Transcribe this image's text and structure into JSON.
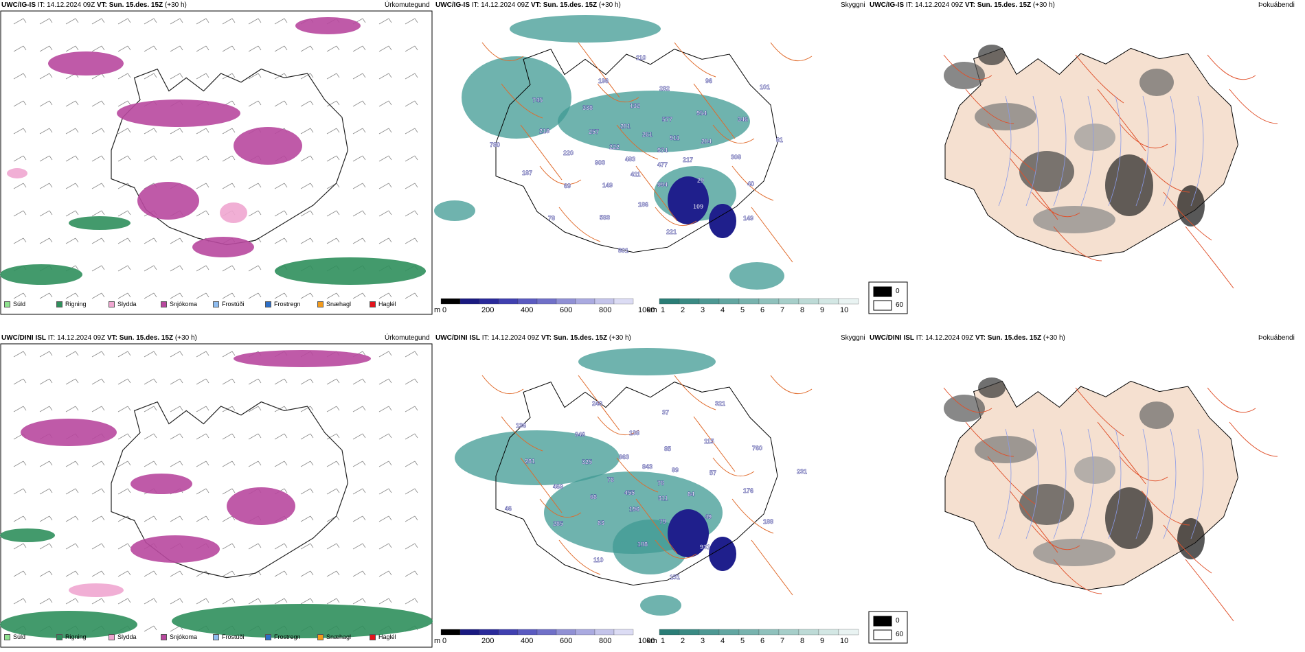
{
  "rows": [
    {
      "model": "UWC/IG-IS",
      "it": "IT: 14.12.2024 09Z",
      "vt": "VT: Sun. 15.des. 15Z",
      "lead": "(+30 h)",
      "cloud_labels": [
        "974",
        "483",
        "261",
        "477",
        "222",
        "911",
        "411",
        "201",
        "217",
        "903",
        "577",
        "994",
        "257",
        "204",
        "149",
        "132",
        "29",
        "220",
        "954",
        "186",
        "338",
        "308",
        "69",
        "282",
        "109",
        "218",
        "346",
        "583",
        "196",
        "40",
        "187",
        "96",
        "221",
        "745",
        "81",
        "78",
        "110",
        "149",
        "780",
        "101",
        "801"
      ]
    },
    {
      "model": "UWC/DINI ISL",
      "it": "IT: 14.12.2024 09Z",
      "vt": "VT: Sun. 15.des. 15Z",
      "lead": "(+30 h)",
      "cloud_labels": [
        "76",
        "455",
        "843",
        "311",
        "78",
        "89",
        "196",
        "863",
        "84",
        "68",
        "85",
        "79",
        "325",
        "57",
        "83",
        "138",
        "49",
        "469",
        "115",
        "108",
        "846",
        "176",
        "285",
        "37",
        "931",
        "281",
        "760",
        "110",
        "240",
        "188",
        "46",
        "321",
        "151",
        "136",
        "231"
      ]
    }
  ],
  "panel_titles": {
    "precip": "Úrkomutegund",
    "cloud": "Skyggni",
    "fog": "Þokuábendi"
  },
  "precip_legend": [
    {
      "label": "Súld",
      "color": "#8fe28f"
    },
    {
      "label": "Rigning",
      "color": "#2f8f5c"
    },
    {
      "label": "Slydda",
      "color": "#efa6d0"
    },
    {
      "label": "Snjókoma",
      "color": "#b8489e"
    },
    {
      "label": "Frostúði",
      "color": "#8fbdf0"
    },
    {
      "label": "Frostregn",
      "color": "#2d6fc8"
    },
    {
      "label": "Snæhagl",
      "color": "#f29a1c"
    },
    {
      "label": "Haglél",
      "color": "#e3131b"
    }
  ],
  "cloud_base_scale": {
    "unit": "m",
    "ticks": [
      "0",
      "200",
      "400",
      "600",
      "800",
      "1000"
    ]
  },
  "visibility_scale": {
    "unit": "km",
    "ticks": [
      "1",
      "2",
      "3",
      "4",
      "5",
      "6",
      "7",
      "8",
      "9",
      "10"
    ]
  },
  "fog_scale": {
    "high": "0",
    "low": "60"
  },
  "colors": {
    "snow": "#b8489e",
    "rain": "#2f8f5c",
    "sleet": "#efa6d0",
    "teal": "#3f9a93",
    "navy": "#1f1f8c",
    "land": "#f5e0d0",
    "roads": "#e06a2a"
  }
}
